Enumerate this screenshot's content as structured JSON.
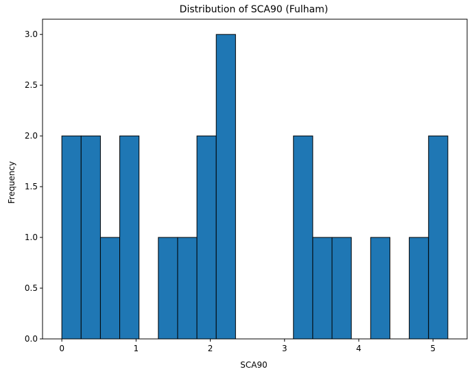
{
  "chart_data": {
    "type": "bar",
    "title": "Distribution of SCA90 (Fulham)",
    "xlabel": "SCA90",
    "ylabel": "Frequency",
    "bins": [
      {
        "start": 0.0,
        "end": 0.26,
        "count": 2
      },
      {
        "start": 0.26,
        "end": 0.52,
        "count": 2
      },
      {
        "start": 0.52,
        "end": 0.78,
        "count": 1
      },
      {
        "start": 0.78,
        "end": 1.04,
        "count": 2
      },
      {
        "start": 1.04,
        "end": 1.3,
        "count": 0
      },
      {
        "start": 1.3,
        "end": 1.56,
        "count": 1
      },
      {
        "start": 1.56,
        "end": 1.82,
        "count": 1
      },
      {
        "start": 1.82,
        "end": 2.08,
        "count": 2
      },
      {
        "start": 2.08,
        "end": 2.34,
        "count": 3
      },
      {
        "start": 2.34,
        "end": 2.6,
        "count": 0
      },
      {
        "start": 2.6,
        "end": 2.86,
        "count": 0
      },
      {
        "start": 2.86,
        "end": 3.12,
        "count": 0
      },
      {
        "start": 3.12,
        "end": 3.38,
        "count": 2
      },
      {
        "start": 3.38,
        "end": 3.64,
        "count": 1
      },
      {
        "start": 3.64,
        "end": 3.9,
        "count": 1
      },
      {
        "start": 3.9,
        "end": 4.16,
        "count": 0
      },
      {
        "start": 4.16,
        "end": 4.42,
        "count": 1
      },
      {
        "start": 4.42,
        "end": 4.68,
        "count": 0
      },
      {
        "start": 4.68,
        "end": 4.94,
        "count": 1
      },
      {
        "start": 4.94,
        "end": 5.2,
        "count": 2
      }
    ],
    "xlim": [
      -0.26,
      5.46
    ],
    "ylim": [
      0,
      3.15
    ],
    "xticks": [
      0,
      1,
      2,
      3,
      4,
      5
    ],
    "xtick_labels": [
      "0",
      "1",
      "2",
      "3",
      "4",
      "5"
    ],
    "yticks": [
      0.0,
      0.5,
      1.0,
      1.5,
      2.0,
      2.5,
      3.0
    ],
    "ytick_labels": [
      "0.0",
      "0.5",
      "1.0",
      "1.5",
      "2.0",
      "2.5",
      "3.0"
    ],
    "grid": false,
    "colors": {
      "bar_fill": "#1f77b4",
      "bar_edge": "#000000",
      "axes": "#000000",
      "background": "#ffffff"
    }
  }
}
